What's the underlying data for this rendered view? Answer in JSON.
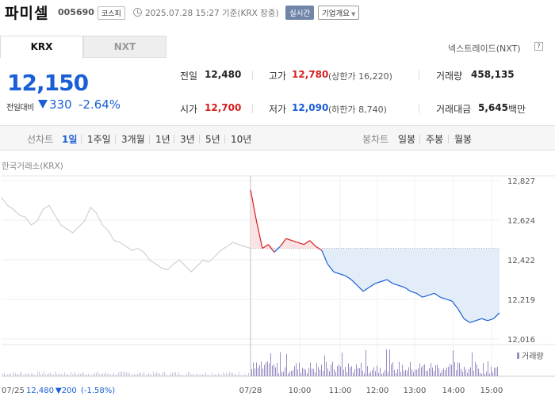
{
  "header": {
    "name": "파미셀",
    "code": "005690",
    "market": "코스피",
    "timestamp": "2025.07.28 15:27 기준(KRX 장중)",
    "realtime": "실시간",
    "company_btn": "기업개요"
  },
  "tabs": {
    "krx": "KRX",
    "nxt": "NXT"
  },
  "nextrade": "넥스트레이드(NXT)",
  "help": "?",
  "price": {
    "current": "12,150",
    "diff_label": "전일대비",
    "diff": "330",
    "rate": "-2.64%"
  },
  "stats": {
    "prev_label": "전일",
    "prev": "12,480",
    "open_label": "시가",
    "open": "12,700",
    "high_label": "고가",
    "high": "12,780",
    "upper_limit": "(상한가 16,220)",
    "low_label": "저가",
    "low": "12,090",
    "lower_limit": "(하한가 8,740)",
    "volume_label": "거래량",
    "volume": "458,135",
    "amount_label": "거래대금",
    "amount": "5,645",
    "amount_unit": "백만"
  },
  "periods": {
    "line_label": "선차트",
    "line_items": [
      "1일",
      "1주일",
      "3개월",
      "1년",
      "3년",
      "5년",
      "10년"
    ],
    "candle_label": "봉차트",
    "candle_items": [
      "일봉",
      "주봉",
      "월봉"
    ]
  },
  "exchange_label": "한국거래소(KRX)",
  "colors": {
    "up": "#d61f1f",
    "down": "#1a5fd6",
    "prev_day": "#c8c8c8",
    "fill": "#e3edf9",
    "volume": "#9b8cc4"
  },
  "chart_data": {
    "type": "line",
    "y_ticks": [
      "12,827",
      "12,624",
      "12,422",
      "12,219",
      "12,016"
    ],
    "ylim": [
      12016,
      12827
    ],
    "reference_price": 12480,
    "x_ticks": [
      "07/28",
      "10:00",
      "11:00",
      "12:00",
      "13:00",
      "14:00",
      "15:00"
    ],
    "prev_day_footer": {
      "date": "07/25",
      "close": "12,480",
      "change": "▼200",
      "rate": "(-1.58%)"
    },
    "volume_label": "거래량",
    "series": [
      {
        "name": "07/25",
        "values": [
          12740,
          12700,
          12680,
          12650,
          12640,
          12600,
          12620,
          12680,
          12700,
          12650,
          12600,
          12580,
          12560,
          12590,
          12620,
          12690,
          12660,
          12600,
          12570,
          12520,
          12510,
          12490,
          12470,
          12480,
          12460,
          12420,
          12400,
          12380,
          12370,
          12400,
          12420,
          12390,
          12360,
          12390,
          12420,
          12410,
          12440,
          12470,
          12490,
          12510,
          12500,
          12490,
          12480
        ]
      },
      {
        "name": "07/28",
        "values": [
          12780,
          12620,
          12480,
          12500,
          12460,
          12490,
          12530,
          12520,
          12510,
          12500,
          12520,
          12490,
          12470,
          12400,
          12360,
          12350,
          12340,
          12320,
          12290,
          12260,
          12280,
          12300,
          12310,
          12320,
          12300,
          12290,
          12280,
          12260,
          12250,
          12230,
          12240,
          12250,
          12230,
          12220,
          12210,
          12170,
          12120,
          12100,
          12110,
          12120,
          12110,
          12120,
          12150
        ]
      }
    ]
  }
}
